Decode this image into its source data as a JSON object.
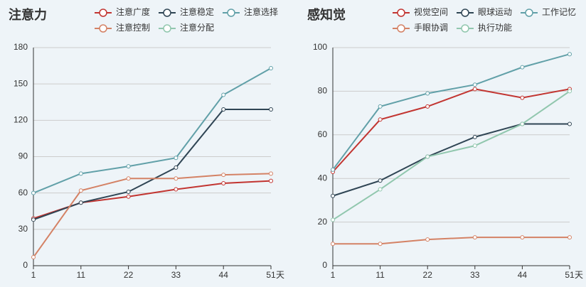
{
  "chart_data": [
    {
      "type": "line",
      "title": "注意力",
      "x_label": "天",
      "categories": [
        "1",
        "11",
        "22",
        "33",
        "44",
        "51"
      ],
      "ylim": [
        0,
        180
      ],
      "yticks": [
        0,
        30,
        60,
        90,
        120,
        150,
        180
      ],
      "grid": true,
      "series": [
        {
          "name": "注意广度",
          "color": "#c23531",
          "values": [
            39,
            52,
            57,
            63,
            68,
            70
          ]
        },
        {
          "name": "注意稳定",
          "color": "#2f4554",
          "values": [
            38,
            52,
            61,
            81,
            129,
            129
          ]
        },
        {
          "name": "注意选择",
          "color": "#61a0a8",
          "values": [
            60,
            76,
            82,
            89,
            141,
            163
          ]
        },
        {
          "name": "注意控制",
          "color": "#d48265",
          "values": [
            7,
            62,
            72,
            72,
            75,
            76
          ]
        },
        {
          "name": "注意分配",
          "color": "#91c7ae",
          "values": [
            null,
            null,
            null,
            null,
            null,
            null
          ]
        }
      ]
    },
    {
      "type": "line",
      "title": "感知觉",
      "x_label": "天",
      "categories": [
        "1",
        "11",
        "22",
        "33",
        "44",
        "51"
      ],
      "ylim": [
        0,
        100
      ],
      "yticks": [
        0,
        20,
        40,
        60,
        80,
        100
      ],
      "grid": true,
      "series": [
        {
          "name": "视觉空间",
          "color": "#c23531",
          "values": [
            43,
            67,
            73,
            81,
            77,
            81
          ]
        },
        {
          "name": "眼球运动",
          "color": "#2f4554",
          "values": [
            32,
            39,
            50,
            59,
            65,
            65
          ]
        },
        {
          "name": "工作记忆",
          "color": "#61a0a8",
          "values": [
            44,
            73,
            79,
            83,
            91,
            97
          ]
        },
        {
          "name": "手眼协调",
          "color": "#d48265",
          "values": [
            10,
            10,
            12,
            13,
            13,
            13
          ]
        },
        {
          "name": "执行功能",
          "color": "#91c7ae",
          "values": [
            21,
            35,
            50,
            55,
            65,
            80
          ]
        }
      ]
    }
  ]
}
